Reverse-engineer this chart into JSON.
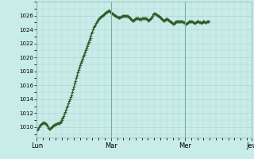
{
  "background_color": "#c8ece8",
  "grid_color": "#b0d4d0",
  "line_color": "#2d5a27",
  "marker_color": "#2d5a27",
  "x_tick_labels": [
    "Lun",
    "Mar",
    "Mer",
    "Jeu"
  ],
  "x_tick_positions": [
    0,
    96,
    192,
    278
  ],
  "y_min": 1008.5,
  "y_max": 1028.0,
  "y_ticks": [
    1010,
    1012,
    1014,
    1016,
    1018,
    1020,
    1022,
    1024,
    1026
  ],
  "title": "",
  "ylabel": "",
  "pressure_data": [
    1009.5,
    1009.6,
    1009.8,
    1010.0,
    1010.2,
    1010.3,
    1010.4,
    1010.5,
    1010.6,
    1010.7,
    1010.6,
    1010.5,
    1010.4,
    1010.3,
    1010.1,
    1009.9,
    1009.8,
    1009.8,
    1009.9,
    1010.0,
    1010.1,
    1010.2,
    1010.3,
    1010.3,
    1010.4,
    1010.4,
    1010.5,
    1010.5,
    1010.6,
    1010.6,
    1010.7,
    1010.8,
    1011.0,
    1011.2,
    1011.4,
    1011.6,
    1011.9,
    1012.2,
    1012.5,
    1012.8,
    1013.1,
    1013.4,
    1013.7,
    1014.0,
    1014.3,
    1014.6,
    1015.0,
    1015.4,
    1015.8,
    1016.2,
    1016.6,
    1017.0,
    1017.4,
    1017.8,
    1018.2,
    1018.5,
    1018.9,
    1019.2,
    1019.5,
    1019.8,
    1020.1,
    1020.4,
    1020.7,
    1021.0,
    1021.3,
    1021.6,
    1021.9,
    1022.2,
    1022.5,
    1022.8,
    1023.1,
    1023.4,
    1023.7,
    1024.0,
    1024.3,
    1024.5,
    1024.7,
    1024.9,
    1025.1,
    1025.3,
    1025.5,
    1025.6,
    1025.7,
    1025.8,
    1025.9,
    1026.0,
    1026.1,
    1026.2,
    1026.3,
    1026.4,
    1026.5,
    1026.5,
    1026.6,
    1026.7,
    1026.6,
    1026.5,
    1026.4,
    1026.3,
    1026.3,
    1026.2,
    1026.1,
    1026.0,
    1025.9,
    1025.8,
    1025.8,
    1025.7,
    1025.7,
    1025.7,
    1025.7,
    1025.8,
    1025.8,
    1025.9,
    1026.0,
    1026.0,
    1026.0,
    1026.0,
    1026.0,
    1025.9,
    1025.9,
    1025.8,
    1025.7,
    1025.6,
    1025.5,
    1025.4,
    1025.3,
    1025.3,
    1025.4,
    1025.5,
    1025.6,
    1025.6,
    1025.6,
    1025.6,
    1025.5,
    1025.5,
    1025.5,
    1025.5,
    1025.6,
    1025.6,
    1025.6,
    1025.6,
    1025.6,
    1025.6,
    1025.5,
    1025.5,
    1025.4,
    1025.3,
    1025.4,
    1025.5,
    1025.6,
    1025.7,
    1026.0,
    1026.2,
    1026.3,
    1026.3,
    1026.2,
    1026.2,
    1026.1,
    1026.0,
    1025.9,
    1025.8,
    1025.7,
    1025.6,
    1025.5,
    1025.4,
    1025.3,
    1025.3,
    1025.4,
    1025.5,
    1025.5,
    1025.5,
    1025.4,
    1025.3,
    1025.2,
    1025.1,
    1025.0,
    1024.9,
    1024.8,
    1024.8,
    1024.9,
    1025.0,
    1025.1,
    1025.1,
    1025.2,
    1025.2,
    1025.2,
    1025.2,
    1025.2,
    1025.2,
    1025.1,
    1025.1,
    1025.0,
    1025.0,
    1024.9,
    1024.8,
    1024.8,
    1024.9,
    1025.0,
    1025.1,
    1025.2,
    1025.2,
    1025.2,
    1025.1,
    1025.0,
    1025.0,
    1024.9,
    1024.9,
    1025.0,
    1025.1,
    1025.2,
    1025.1,
    1025.0,
    1025.0,
    1025.0,
    1024.9,
    1025.0,
    1025.1,
    1025.2,
    1025.1,
    1025.0,
    1025.0,
    1025.0,
    1025.1,
    1025.2,
    1025.2
  ]
}
